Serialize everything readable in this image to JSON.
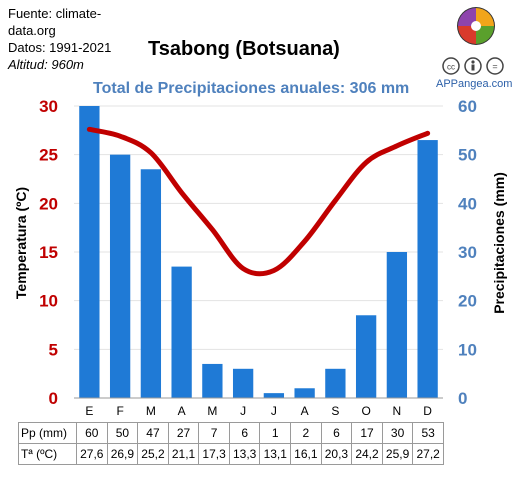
{
  "source": {
    "line1": "Fuente: climate-",
    "line2": "data.org",
    "dates": "Datos: 1991-2021",
    "altitude": "Altitud: 960m"
  },
  "brand": "APPangea.com",
  "chart_data": {
    "type": "bar+line",
    "title": "Tsabong (Botsuana)",
    "subtitle": "Total de Precipitaciones anuales: 306 mm",
    "categories": [
      "E",
      "F",
      "M",
      "A",
      "M",
      "J",
      "J",
      "A",
      "S",
      "O",
      "N",
      "D"
    ],
    "precipitation": [
      60,
      50,
      47,
      27,
      7,
      6,
      1,
      2,
      6,
      17,
      30,
      53
    ],
    "temperature": [
      27.6,
      26.9,
      25.2,
      21.1,
      17.3,
      13.3,
      13.1,
      16.1,
      20.3,
      24.2,
      25.9,
      27.2
    ],
    "temperature_labels": [
      "27,6",
      "26,9",
      "25,2",
      "21,1",
      "17,3",
      "13,3",
      "13,1",
      "16,1",
      "20,3",
      "24,2",
      "25,9",
      "27,2"
    ],
    "ylabel_left": "Temperatura (ºC)",
    "ylabel_right": "Precipitaciones (mm)",
    "ylim_left": [
      0,
      30
    ],
    "ylim_right": [
      0,
      60
    ],
    "left_ticks": [
      0,
      5,
      10,
      15,
      20,
      25,
      30
    ],
    "right_ticks": [
      0,
      10,
      20,
      30,
      40,
      50,
      60
    ],
    "bar_color": "#1f7ad6",
    "line_color": "#c00000",
    "left_axis_color": "#c00000",
    "right_axis_color": "#4f81bd",
    "table_row_labels": [
      "Pp (mm)",
      "Tª (ºC)"
    ]
  }
}
